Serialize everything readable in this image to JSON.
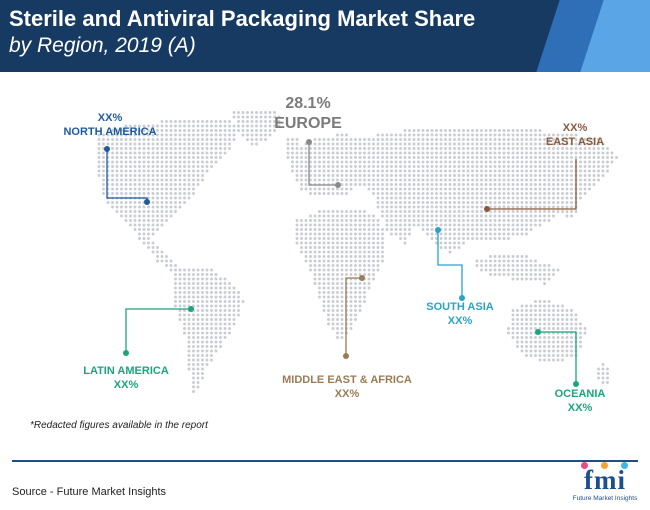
{
  "header": {
    "title_line1": "Sterile and Antiviral Packaging Market Share",
    "title_line2": "by Region, 2019 (A)"
  },
  "regions": {
    "north_america": {
      "name": "NORTH AMERICA",
      "value": "XX%",
      "color": "#1e5a9e"
    },
    "europe": {
      "name": "EUROPE",
      "value": "28.1%",
      "color": "#7b7b7b"
    },
    "east_asia": {
      "name": "EAST ASIA",
      "value": "XX%",
      "color": "#8a5a3c"
    },
    "south_asia": {
      "name": "SOUTH ASIA",
      "value": "XX%",
      "color": "#2aa3c9"
    },
    "latin_america": {
      "name": "LATIN AMERICA",
      "value": "XX%",
      "color": "#1aa57a"
    },
    "middle_east_africa": {
      "name": "MIDDLE EAST & AFRICA",
      "value": "XX%",
      "color": "#9a7b55"
    },
    "oceania": {
      "name": "OCEANIA",
      "value": "XX%",
      "color": "#1aa57a"
    }
  },
  "note": "*Redacted figures available in the report",
  "source": "Source - Future Market Insights",
  "logo": {
    "text": "fmi",
    "subtitle": "Future Market Insights"
  }
}
